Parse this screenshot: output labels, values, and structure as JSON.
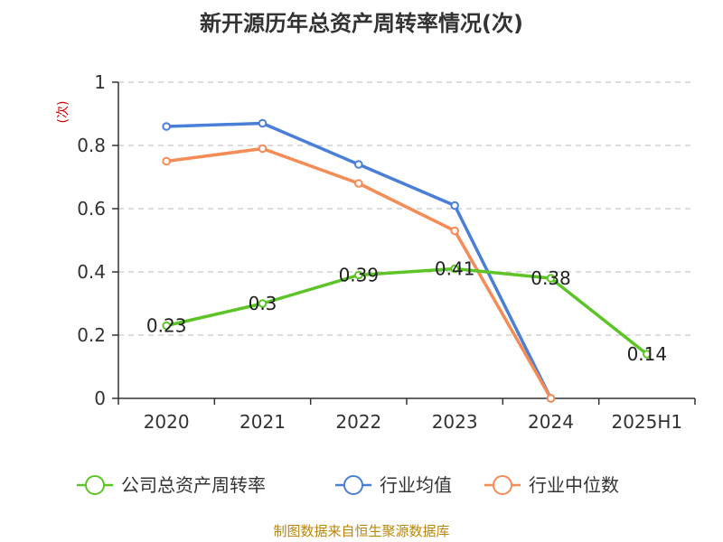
{
  "chart_data": {
    "type": "line",
    "title": "新开源历年总资产周转率情况(次)",
    "ylabel": "(次)",
    "xlabel": "",
    "categories": [
      "2020",
      "2021",
      "2022",
      "2023",
      "2024",
      "2025H1"
    ],
    "ylim": [
      0,
      1
    ],
    "yticks": [
      "0",
      "0.2",
      "0.4",
      "0.6",
      "0.8",
      "1"
    ],
    "grid": "horizontal dashed",
    "legend_position": "bottom",
    "series": [
      {
        "name": "公司总资产周转率",
        "color": "#5dc427",
        "values": [
          0.23,
          0.3,
          0.39,
          0.41,
          0.38,
          0.14
        ],
        "labels": [
          "0.23",
          "0.3",
          "0.39",
          "0.41",
          "0.38",
          "0.14"
        ]
      },
      {
        "name": "行业均值",
        "color": "#4a7fd8",
        "values": [
          0.86,
          0.87,
          0.74,
          0.61,
          0.0,
          null
        ],
        "labels": []
      },
      {
        "name": "行业中位数",
        "color": "#f58b55",
        "values": [
          0.75,
          0.79,
          0.68,
          0.53,
          0.0,
          null
        ],
        "labels": []
      }
    ]
  },
  "footer": {
    "source": "制图数据来自恒生聚源数据库"
  }
}
